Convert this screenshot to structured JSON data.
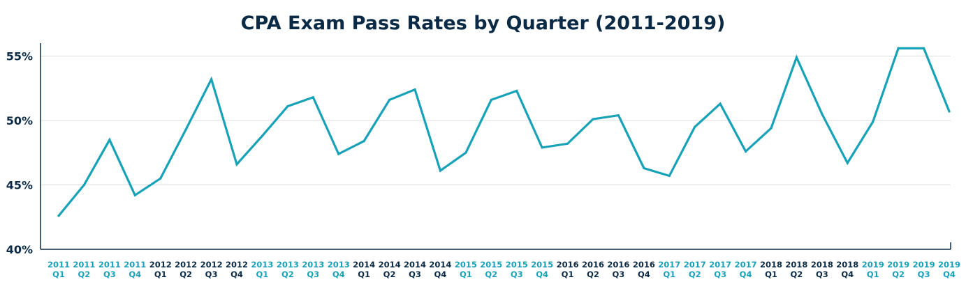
{
  "chart_data": {
    "type": "line",
    "title": "CPA Exam Pass Rates by Quarter (2011-2019)",
    "xlabel": "",
    "ylabel": "",
    "ylim": [
      40,
      56
    ],
    "yticks": [
      40,
      45,
      50,
      55
    ],
    "ytick_labels": [
      "40%",
      "45%",
      "50%",
      "55%"
    ],
    "grid": true,
    "legend": "none",
    "line_color": "#17a2b8",
    "colors": {
      "label_dark": "#0b2a45",
      "label_accent": "#17a2b8",
      "grid": "#dddddd",
      "axis": "#0b2a45"
    },
    "categories": [
      [
        "2011",
        "Q1"
      ],
      [
        "2011",
        "Q2"
      ],
      [
        "2011",
        "Q3"
      ],
      [
        "2011",
        "Q4"
      ],
      [
        "2012",
        "Q1"
      ],
      [
        "2012",
        "Q2"
      ],
      [
        "2012",
        "Q3"
      ],
      [
        "2012",
        "Q4"
      ],
      [
        "2013",
        "Q1"
      ],
      [
        "2013",
        "Q2"
      ],
      [
        "2013",
        "Q3"
      ],
      [
        "2013",
        "Q4"
      ],
      [
        "2014",
        "Q1"
      ],
      [
        "2014",
        "Q2"
      ],
      [
        "2014",
        "Q3"
      ],
      [
        "2014",
        "Q4"
      ],
      [
        "2015",
        "Q1"
      ],
      [
        "2015",
        "Q2"
      ],
      [
        "2015",
        "Q3"
      ],
      [
        "2015",
        "Q4"
      ],
      [
        "2016",
        "Q1"
      ],
      [
        "2016",
        "Q2"
      ],
      [
        "2016",
        "Q3"
      ],
      [
        "2016",
        "Q4"
      ],
      [
        "2017",
        "Q1"
      ],
      [
        "2017",
        "Q2"
      ],
      [
        "2017",
        "Q3"
      ],
      [
        "2017",
        "Q4"
      ],
      [
        "2018",
        "Q1"
      ],
      [
        "2018",
        "Q2"
      ],
      [
        "2018",
        "Q3"
      ],
      [
        "2018",
        "Q4"
      ],
      [
        "2019",
        "Q1"
      ],
      [
        "2019",
        "Q2"
      ],
      [
        "2019",
        "Q3"
      ],
      [
        "2019",
        "Q4"
      ]
    ],
    "accent_years": [
      "2011",
      "2013",
      "2015",
      "2017",
      "2019"
    ],
    "series": [
      {
        "values": [
          42.6,
          45.0,
          48.5,
          44.2,
          45.5,
          49.3,
          53.2,
          46.6,
          48.8,
          51.1,
          51.8,
          47.4,
          48.4,
          51.6,
          52.4,
          46.1,
          47.5,
          51.6,
          52.3,
          47.9,
          48.2,
          50.1,
          50.4,
          46.3,
          45.7,
          49.5,
          51.3,
          47.6,
          49.4,
          54.9,
          50.5,
          46.7,
          49.9,
          55.6,
          55.6,
          50.7
        ]
      }
    ]
  }
}
